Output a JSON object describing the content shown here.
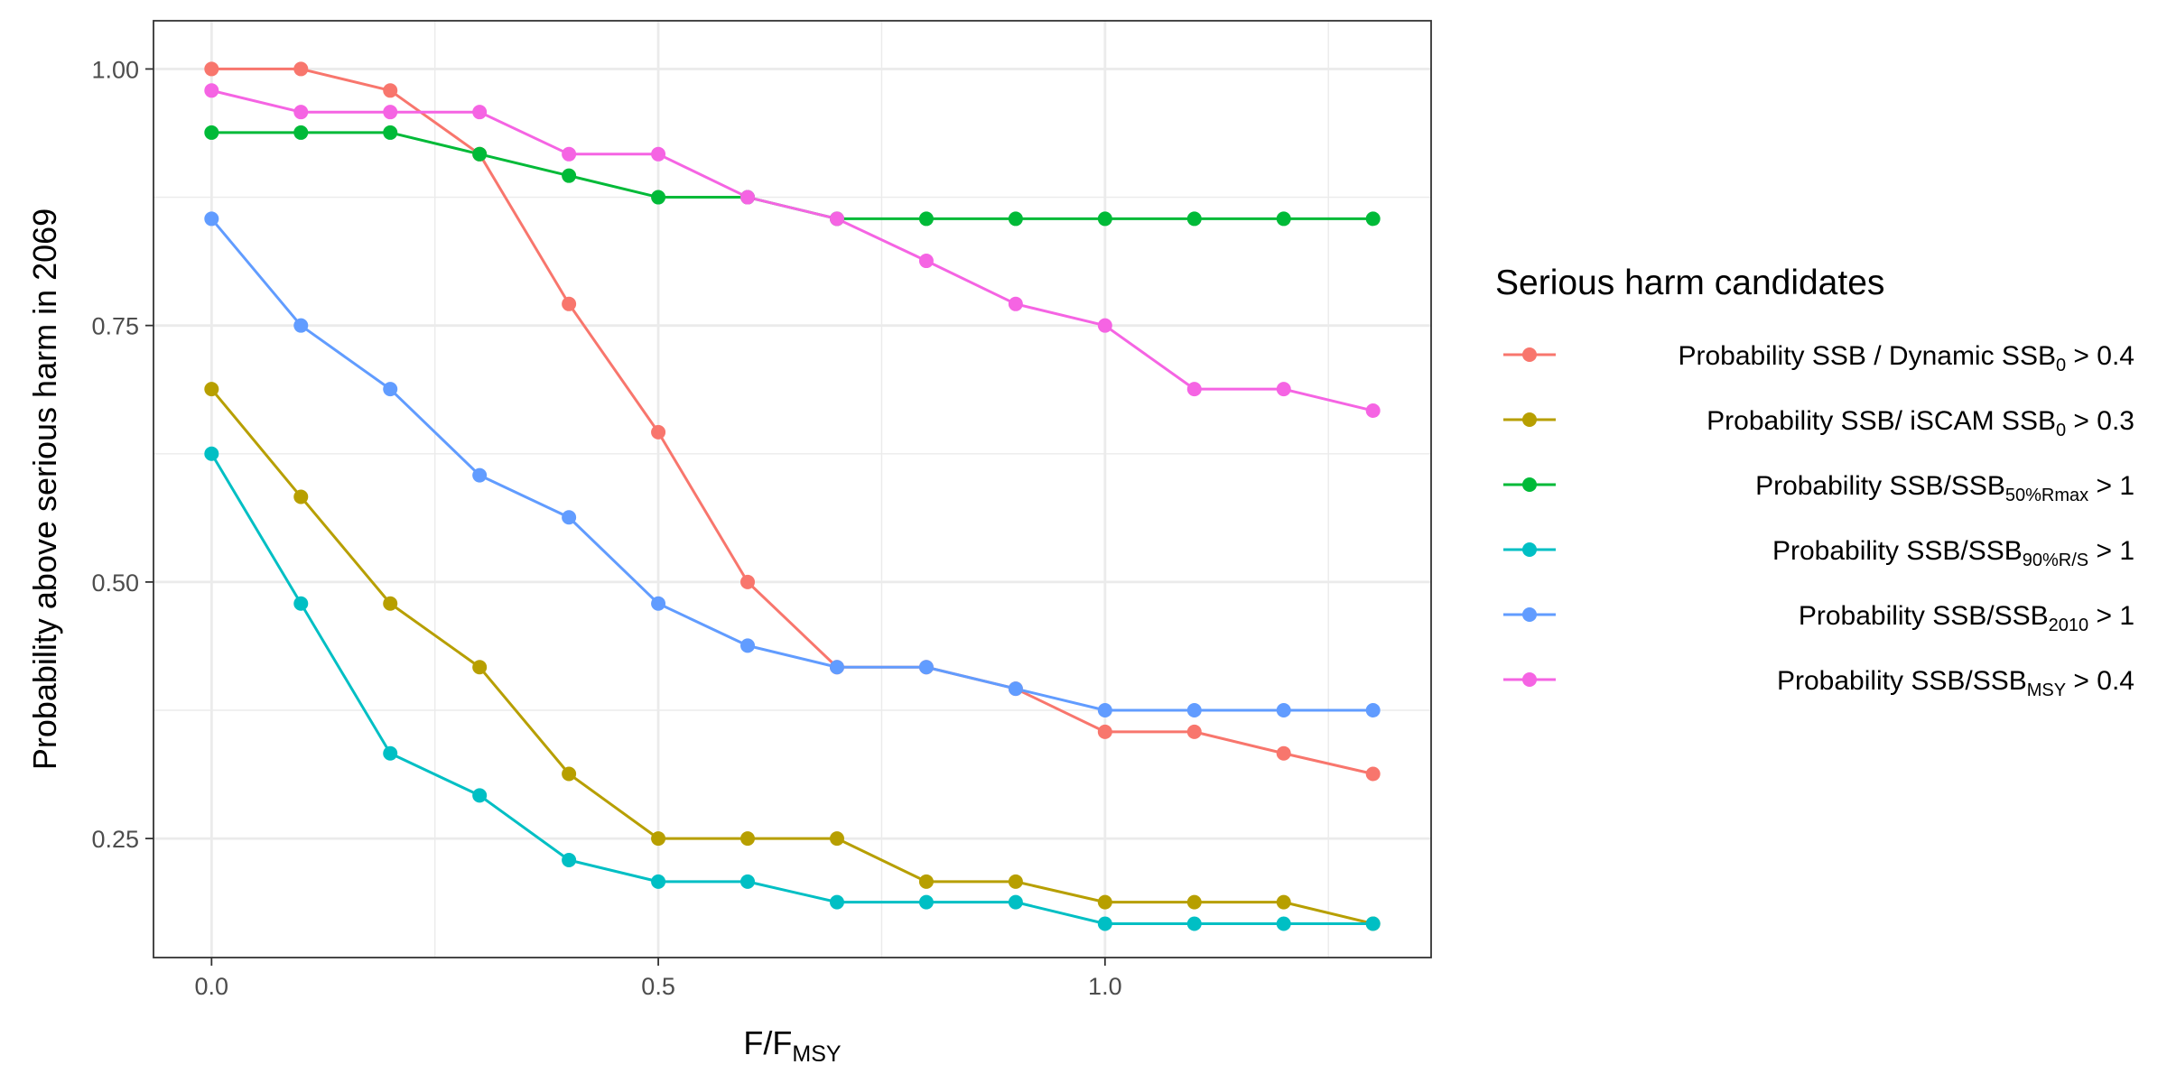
{
  "chart_data": {
    "type": "line",
    "title": "",
    "xlabel": {
      "main": "F/F",
      "sub": "MSY"
    },
    "ylabel": "Probability above serious harm in 2069",
    "xlim": [
      -0.065,
      1.365
    ],
    "ylim": [
      0.134,
      1.047
    ],
    "xticks": [
      0.0,
      0.5,
      1.0
    ],
    "xtick_labels": [
      "0.0",
      "0.5",
      "1.0"
    ],
    "yticks": [
      0.25,
      0.5,
      0.75,
      1.0
    ],
    "ytick_labels": [
      "0.25",
      "0.50",
      "0.75",
      "1.00"
    ],
    "grid": true,
    "legend_position": "right",
    "legend_title": "Serious harm candidates",
    "x": [
      0.0,
      0.1,
      0.2,
      0.3,
      0.4,
      0.5,
      0.6,
      0.7,
      0.8,
      0.9,
      1.0,
      1.1,
      1.2,
      1.3
    ],
    "series": [
      {
        "name_parts": [
          {
            "text": "Probability SSB / Dynamic SSB"
          },
          {
            "text": "0",
            "sub": true
          },
          {
            "text": " > 0.4"
          }
        ],
        "color": "#F8766D",
        "values": [
          1.0,
          1.0,
          0.979,
          0.917,
          0.771,
          0.646,
          0.5,
          0.417,
          0.417,
          0.396,
          0.354,
          0.354,
          0.333,
          0.313
        ]
      },
      {
        "name_parts": [
          {
            "text": "Probability SSB/ iSCAM SSB"
          },
          {
            "text": "0",
            "sub": true
          },
          {
            "text": " > 0.3"
          }
        ],
        "color": "#B79F00",
        "values": [
          0.688,
          0.583,
          0.479,
          0.417,
          0.313,
          0.25,
          0.25,
          0.25,
          0.208,
          0.208,
          0.188,
          0.188,
          0.188,
          0.167
        ]
      },
      {
        "name_parts": [
          {
            "text": "Probability SSB/SSB"
          },
          {
            "text": "50%Rmax",
            "sub": true
          },
          {
            "text": " > 1"
          }
        ],
        "color": "#00BA38",
        "values": [
          0.938,
          0.938,
          0.938,
          0.917,
          0.896,
          0.875,
          0.875,
          0.854,
          0.854,
          0.854,
          0.854,
          0.854,
          0.854,
          0.854
        ]
      },
      {
        "name_parts": [
          {
            "text": "Probability SSB/SSB"
          },
          {
            "text": "90%R/S",
            "sub": true
          },
          {
            "text": " > 1"
          }
        ],
        "color": "#00BFC4",
        "values": [
          0.625,
          0.479,
          0.333,
          0.292,
          0.229,
          0.208,
          0.208,
          0.188,
          0.188,
          0.188,
          0.167,
          0.167,
          0.167,
          0.167
        ]
      },
      {
        "name_parts": [
          {
            "text": "Probability SSB/SSB"
          },
          {
            "text": "2010",
            "sub": true
          },
          {
            "text": " > 1"
          }
        ],
        "color": "#619CFF",
        "values": [
          0.854,
          0.75,
          0.688,
          0.604,
          0.563,
          0.479,
          0.438,
          0.417,
          0.417,
          0.396,
          0.375,
          0.375,
          0.375,
          0.375
        ]
      },
      {
        "name_parts": [
          {
            "text": "Probability SSB/SSB"
          },
          {
            "text": "MSY",
            "sub": true
          },
          {
            "text": " > 0.4"
          }
        ],
        "color": "#F564E3",
        "values": [
          0.979,
          0.958,
          0.958,
          0.958,
          0.917,
          0.917,
          0.875,
          0.854,
          0.813,
          0.771,
          0.75,
          0.688,
          0.688,
          0.667
        ]
      }
    ]
  }
}
